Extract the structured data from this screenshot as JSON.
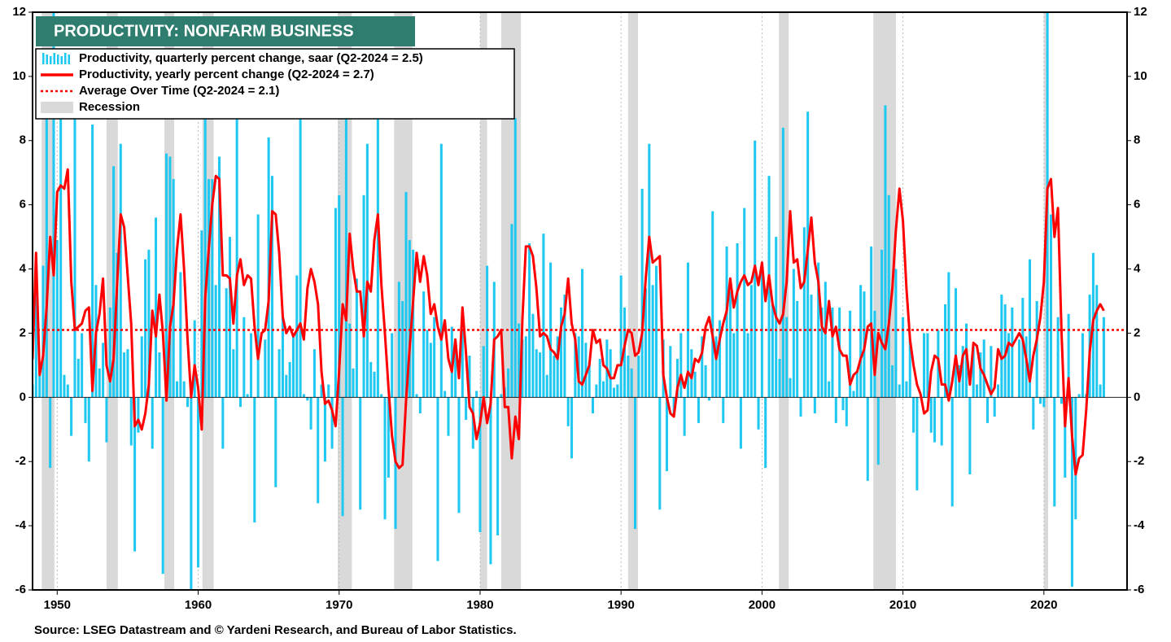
{
  "chart_data": {
    "type": "bar_line",
    "title": "PRODUCTIVITY: NONFARM BUSINESS",
    "source": "Source: LSEG Datastream and © Yardeni Research, and Bureau of Labor Statistics.",
    "xlim": [
      1948.25,
      2025.9
    ],
    "xticks": [
      1950,
      1960,
      1970,
      1980,
      1990,
      2000,
      2010,
      2020
    ],
    "ylim": [
      -6,
      12
    ],
    "yticks": [
      -6,
      -4,
      -2,
      0,
      2,
      4,
      6,
      8,
      10,
      12
    ],
    "grid": "x",
    "recession": {
      "name": "Recession",
      "color": "#d9d9d9",
      "periods": [
        [
          1948.9,
          1949.8
        ],
        [
          1953.5,
          1954.3
        ],
        [
          1957.6,
          1958.3
        ],
        [
          1960.3,
          1961.1
        ],
        [
          1969.9,
          1970.9
        ],
        [
          1973.9,
          1975.2
        ],
        [
          1980,
          1980.5
        ],
        [
          1981.5,
          1982.9
        ],
        [
          1990.5,
          1991.2
        ],
        [
          2001.2,
          2001.9
        ],
        [
          2007.9,
          2009.5
        ],
        [
          2020,
          2020.3
        ]
      ]
    },
    "average": {
      "name": "Average Over Time (Q2-2024 = 2.1)",
      "value": 2.1,
      "color": "#ff0000"
    },
    "x": [
      1948,
      1948.25,
      1948.5,
      1948.75,
      1949,
      1949.25,
      1949.5,
      1949.75,
      1950,
      1950.25,
      1950.5,
      1950.75,
      1951,
      1951.25,
      1951.5,
      1951.75,
      1952,
      1952.25,
      1952.5,
      1952.75,
      1953,
      1953.25,
      1953.5,
      1953.75,
      1954,
      1954.25,
      1954.5,
      1954.75,
      1955,
      1955.25,
      1955.5,
      1955.75,
      1956,
      1956.25,
      1956.5,
      1956.75,
      1957,
      1957.25,
      1957.5,
      1957.75,
      1958,
      1958.25,
      1958.5,
      1958.75,
      1959,
      1959.25,
      1959.5,
      1959.75,
      1960,
      1960.25,
      1960.5,
      1960.75,
      1961,
      1961.25,
      1961.5,
      1961.75,
      1962,
      1962.25,
      1962.5,
      1962.75,
      1963,
      1963.25,
      1963.5,
      1963.75,
      1964,
      1964.25,
      1964.5,
      1964.75,
      1965,
      1965.25,
      1965.5,
      1965.75,
      1966,
      1966.25,
      1966.5,
      1966.75,
      1967,
      1967.25,
      1967.5,
      1967.75,
      1968,
      1968.25,
      1968.5,
      1968.75,
      1969,
      1969.25,
      1969.5,
      1969.75,
      1970,
      1970.25,
      1970.5,
      1970.75,
      1971,
      1971.25,
      1971.5,
      1971.75,
      1972,
      1972.25,
      1972.5,
      1972.75,
      1973,
      1973.25,
      1973.5,
      1973.75,
      1974,
      1974.25,
      1974.5,
      1974.75,
      1975,
      1975.25,
      1975.5,
      1975.75,
      1976,
      1976.25,
      1976.5,
      1976.75,
      1977,
      1977.25,
      1977.5,
      1977.75,
      1978,
      1978.25,
      1978.5,
      1978.75,
      1979,
      1979.25,
      1979.5,
      1979.75,
      1980,
      1980.25,
      1980.5,
      1980.75,
      1981,
      1981.25,
      1981.5,
      1981.75,
      1982,
      1982.25,
      1982.5,
      1982.75,
      1983,
      1983.25,
      1983.5,
      1983.75,
      1984,
      1984.25,
      1984.5,
      1984.75,
      1985,
      1985.25,
      1985.5,
      1985.75,
      1986,
      1986.25,
      1986.5,
      1986.75,
      1987,
      1987.25,
      1987.5,
      1987.75,
      1988,
      1988.25,
      1988.5,
      1988.75,
      1989,
      1989.25,
      1989.5,
      1989.75,
      1990,
      1990.25,
      1990.5,
      1990.75,
      1991,
      1991.25,
      1991.5,
      1991.75,
      1992,
      1992.25,
      1992.5,
      1992.75,
      1993,
      1993.25,
      1993.5,
      1993.75,
      1994,
      1994.25,
      1994.5,
      1994.75,
      1995,
      1995.25,
      1995.5,
      1995.75,
      1996,
      1996.25,
      1996.5,
      1996.75,
      1997,
      1997.25,
      1997.5,
      1997.75,
      1998,
      1998.25,
      1998.5,
      1998.75,
      1999,
      1999.25,
      1999.5,
      1999.75,
      2000,
      2000.25,
      2000.5,
      2000.75,
      2001,
      2001.25,
      2001.5,
      2001.75,
      2002,
      2002.25,
      2002.5,
      2002.75,
      2003,
      2003.25,
      2003.5,
      2003.75,
      2004,
      2004.25,
      2004.5,
      2004.75,
      2005,
      2005.25,
      2005.5,
      2005.75,
      2006,
      2006.25,
      2006.5,
      2006.75,
      2007,
      2007.25,
      2007.5,
      2007.75,
      2008,
      2008.25,
      2008.5,
      2008.75,
      2009,
      2009.25,
      2009.5,
      2009.75,
      2010,
      2010.25,
      2010.5,
      2010.75,
      2011,
      2011.25,
      2011.5,
      2011.75,
      2012,
      2012.25,
      2012.5,
      2012.75,
      2013,
      2013.25,
      2013.5,
      2013.75,
      2014,
      2014.25,
      2014.5,
      2014.75,
      2015,
      2015.25,
      2015.5,
      2015.75,
      2016,
      2016.25,
      2016.5,
      2016.75,
      2017,
      2017.25,
      2017.5,
      2017.75,
      2018,
      2018.25,
      2018.5,
      2018.75,
      2019,
      2019.25,
      2019.5,
      2019.75,
      2020,
      2020.25,
      2020.5,
      2020.75,
      2021,
      2021.25,
      2021.5,
      2021.75,
      2022,
      2022.25,
      2022.5,
      2022.75,
      2023,
      2023.25,
      2023.5,
      2023.75,
      2024,
      2024.25
    ],
    "series": [
      {
        "name": "Productivity, quarterly percent change, saar (Q2-2024 = 2.5)",
        "color": "#1ec8f0",
        "values": [
          -1.1,
          0.4,
          4.1,
          0.7,
          4.1,
          8.7,
          -2.2,
          12,
          4.9,
          8.7,
          0.7,
          0.4,
          -1.2,
          8.7,
          1.2,
          2.0,
          -0.8,
          -2.0,
          8.5,
          3.5,
          0.9,
          1.7,
          -1.4,
          2.8,
          7.2,
          4.5,
          7.9,
          1.4,
          1.5,
          -1.5,
          -4.8,
          -1.1,
          1.9,
          4.3,
          4.6,
          -1.6,
          5.6,
          1.4,
          -5.5,
          7.6,
          7.5,
          6.8,
          0.5,
          3.9,
          0.5,
          -0.3,
          -6.0,
          2.4,
          -5.3,
          5.2,
          8.7,
          6.8,
          6.8,
          3.5,
          7.5,
          -1.6,
          3.4,
          5.0,
          1.5,
          8.7,
          -0.3,
          2.5,
          0.1,
          2.0,
          -3.9,
          5.7,
          0.0,
          1.8,
          8.1,
          6.9,
          -2.8,
          1.5,
          2.5,
          0.7,
          1.1,
          2.0,
          3.8,
          8.7,
          0.1,
          -0.1,
          -1.0,
          1.5,
          -3.3,
          0.4,
          -2.0,
          0.4,
          -1.6,
          5.9,
          6.3,
          -3.7,
          8.7,
          2.3,
          0.9,
          3.7,
          -3.5,
          6.3,
          7.9,
          1.1,
          0.8,
          8.7,
          0.1,
          -3.8,
          -2.5,
          2.0,
          -4.1,
          3.6,
          3.0,
          6.4,
          4.9,
          4.6,
          0.1,
          -0.5,
          3.3,
          2.1,
          1.7,
          2.5,
          -5.1,
          7.9,
          0.2,
          -1.2,
          2.2,
          1.5,
          -3.6,
          2.1,
          -0.7,
          1.3,
          -1.6,
          0.2,
          -4.2,
          1.6,
          4.1,
          -5.2,
          3.6,
          -4.3,
          0.1,
          0.3,
          0.9,
          5.4,
          8.7,
          2.3,
          1.8,
          1.9,
          4.8,
          2.6,
          1.5,
          1.4,
          5.1,
          0.7,
          4.2,
          1.3,
          1.9,
          2.8,
          3.2,
          -0.9,
          -1.9,
          2.0,
          1.9,
          4.0,
          1.7,
          1.1,
          -0.5,
          0.4,
          1.2,
          0.5,
          1.8,
          1.5,
          0.3,
          0.4,
          3.8,
          2.8,
          1.3,
          0.9,
          -4.1,
          1.3,
          6.5,
          3.4,
          7.9,
          3.5,
          4.1,
          -3.5,
          1.8,
          -2.3,
          1.6,
          -0.6,
          1.2,
          2.0,
          -1.2,
          4.2,
          1.5,
          0.8,
          -0.8,
          1.9,
          1.0,
          -0.1,
          5.8,
          1.9,
          2.4,
          -0.8,
          4.7,
          3.3,
          2.0,
          4.8,
          -1.6,
          5.9,
          2.0,
          3.5,
          8.0,
          -1.0,
          3.9,
          -2.2,
          6.9,
          2.9,
          5.0,
          1.2,
          8.4,
          2.5,
          0.6,
          4.0,
          3.0,
          -0.6,
          5.3,
          8.9,
          3.2,
          -0.5,
          4.2,
          2.8,
          3.6,
          0.5,
          2.8,
          -0.8,
          2.8,
          -0.4,
          -0.9,
          2.7,
          0.2,
          0.8,
          3.5,
          3.3,
          -2.6,
          4.7,
          2.7,
          -2.1,
          4.6,
          9.1,
          6.3,
          1.0,
          4.0,
          0.4,
          2.5,
          0.5,
          1.8,
          -1.1,
          -2.9,
          0.0,
          2.0,
          2.0,
          -1.1,
          -1.4,
          2.1,
          -1.5,
          2.9,
          3.9,
          -3.4,
          3.4,
          1.0,
          1.6,
          2.3,
          -2.4,
          1.6,
          0.4,
          1.4,
          1.8,
          -0.8,
          1.6,
          -0.6,
          0.4,
          3.2,
          2.9,
          2.0,
          2.8,
          0.0,
          1.8,
          3.1,
          1.9,
          4.3,
          -1.0,
          3.0,
          -0.2,
          -0.3,
          12,
          5.7,
          -3.4,
          2.5,
          -0.2,
          -2.5,
          2.6,
          -5.9,
          -3.8,
          0.1,
          2.0,
          0.1,
          3.2,
          4.5,
          3.5,
          0.4,
          2.5
        ]
      },
      {
        "name": "Productivity, yearly percent change (Q2-2024 = 2.7)",
        "color": "#ff0000",
        "values": [
          3.7,
          1.2,
          4.5,
          0.7,
          1.3,
          2.8,
          5.0,
          3.8,
          6.4,
          6.6,
          6.5,
          7.1,
          3.6,
          2.1,
          2.2,
          2.3,
          2.7,
          2.8,
          0.2,
          2.0,
          2.6,
          3.7,
          1.0,
          0.5,
          1.2,
          3.5,
          5.7,
          5.3,
          3.8,
          2.3,
          -0.9,
          -0.7,
          -1.0,
          -0.5,
          0.4,
          2.7,
          1.9,
          3.2,
          2.0,
          -0.1,
          2.2,
          2.9,
          4.6,
          5.7,
          4.0,
          1.8,
          0.0,
          1.0,
          0.3,
          -1.0,
          3.1,
          4.6,
          6.0,
          6.9,
          6.8,
          3.8,
          3.8,
          3.7,
          2.3,
          3.8,
          4.3,
          3.5,
          3.8,
          3.7,
          2.2,
          1.2,
          2.0,
          2.1,
          3.0,
          5.8,
          5.7,
          4.5,
          2.5,
          2.0,
          2.2,
          1.9,
          2.1,
          2.3,
          1.8,
          3.4,
          4.0,
          3.6,
          2.9,
          0.8,
          -0.2,
          -0.1,
          -0.4,
          -0.9,
          0.8,
          2.9,
          2.4,
          5.1,
          4.0,
          3.3,
          3.3,
          1.9,
          3.6,
          3.3,
          4.9,
          5.7,
          3.5,
          2.0,
          0.3,
          -1.2,
          -2.0,
          -2.2,
          -2.1,
          -0.1,
          1.5,
          3.0,
          4.5,
          3.6,
          4.4,
          3.8,
          2.6,
          2.9,
          2.2,
          1.8,
          2.4,
          1.2,
          0.8,
          1.8,
          0.6,
          2.8,
          1.4,
          -0.3,
          -0.5,
          -1.3,
          -0.8,
          0.0,
          -0.8,
          -0.2,
          1.8,
          1.9,
          2.1,
          -0.3,
          -0.3,
          -1.9,
          -0.6,
          -1.3,
          2.4,
          4.7,
          4.7,
          4.4,
          3.4,
          1.9,
          2.0,
          1.9,
          1.5,
          1.4,
          1.2,
          2.2,
          2.6,
          3.7,
          2.3,
          1.8,
          0.5,
          0.4,
          0.7,
          1.0,
          2.1,
          1.7,
          1.8,
          1.0,
          0.9,
          0.6,
          0.6,
          1.0,
          1.0,
          1.6,
          2.1,
          2.0,
          1.3,
          1.4,
          2.0,
          3.7,
          5.0,
          4.2,
          4.3,
          4.4,
          0.7,
          0.0,
          -0.5,
          -0.6,
          0.3,
          0.7,
          0.3,
          0.8,
          0.6,
          1.2,
          1.1,
          1.4,
          2.2,
          2.5,
          1.9,
          1.2,
          1.8,
          2.3,
          2.7,
          3.7,
          2.8,
          3.3,
          3.6,
          3.8,
          3.5,
          3.6,
          4.1,
          3.5,
          4.2,
          3.0,
          3.8,
          2.9,
          2.5,
          2.3,
          2.6,
          3.6,
          5.8,
          4.2,
          4.3,
          3.4,
          3.6,
          4.6,
          5.6,
          4.2,
          3.6,
          2.2,
          2.0,
          3.0,
          1.9,
          2.2,
          1.5,
          1.3,
          1.3,
          0.4,
          0.7,
          0.8,
          1.2,
          1.5,
          2.2,
          2.3,
          0.7,
          2.0,
          1.7,
          1.5,
          2.3,
          3.4,
          5.2,
          6.5,
          5.5,
          3.4,
          1.8,
          1.0,
          0.4,
          0.1,
          -0.5,
          -0.4,
          0.8,
          1.3,
          1.2,
          0.4,
          0.4,
          -0.1,
          0.5,
          1.3,
          0.5,
          1.3,
          1.5,
          0.4,
          1.7,
          1.6,
          0.9,
          0.7,
          0.4,
          0.1,
          0.3,
          1.5,
          1.2,
          1.3,
          1.7,
          1.6,
          1.8,
          2.0,
          1.8,
          1.2,
          0.5,
          1.3,
          1.8,
          2.5,
          3.6,
          6.5,
          6.8,
          5.0,
          5.9,
          2.0,
          -0.9,
          0.6,
          -1.2,
          -2.4,
          -1.9,
          -1.8,
          -0.4,
          1.4,
          2.4,
          2.7,
          2.9,
          2.7
        ]
      }
    ]
  }
}
